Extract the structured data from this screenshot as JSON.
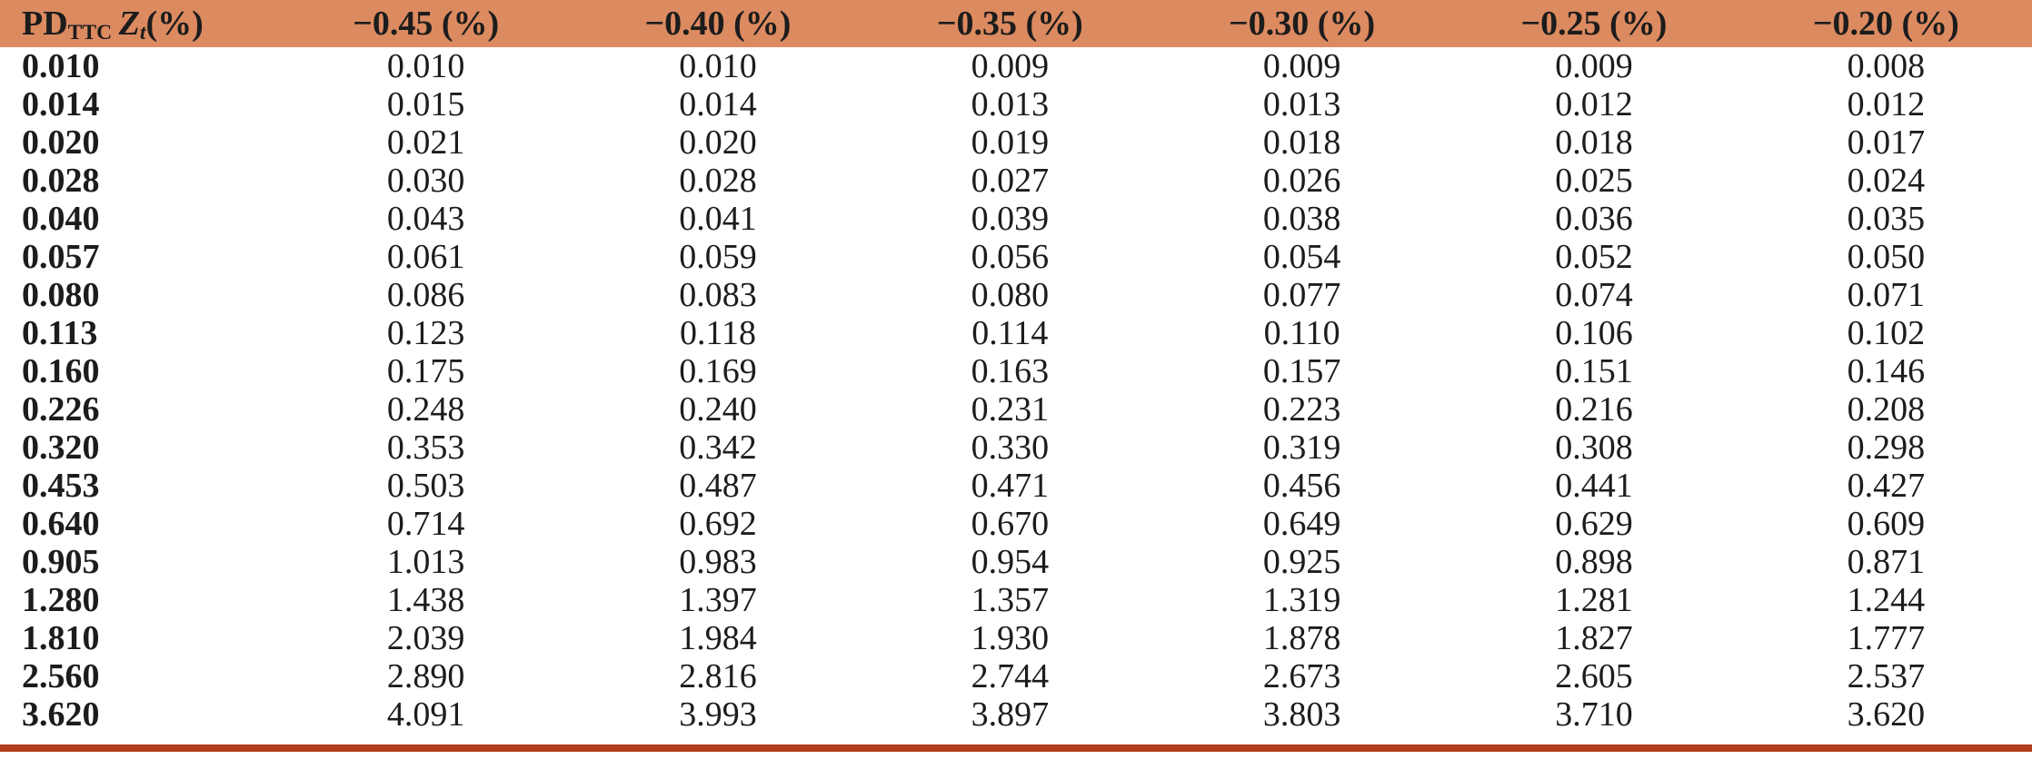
{
  "table": {
    "header_label": {
      "pd": "PD",
      "pd_sub": "TTC",
      "z": "Z",
      "z_sub": "t",
      "pct": "(%)"
    },
    "col_headers": [
      "−0.45 (%)",
      "−0.40 (%)",
      "−0.35 (%)",
      "−0.30 (%)",
      "−0.25 (%)",
      "−0.20 (%)"
    ],
    "rows": [
      {
        "label": "0.010",
        "values": [
          "0.010",
          "0.010",
          "0.009",
          "0.009",
          "0.009",
          "0.008"
        ]
      },
      {
        "label": "0.014",
        "values": [
          "0.015",
          "0.014",
          "0.013",
          "0.013",
          "0.012",
          "0.012"
        ]
      },
      {
        "label": "0.020",
        "values": [
          "0.021",
          "0.020",
          "0.019",
          "0.018",
          "0.018",
          "0.017"
        ]
      },
      {
        "label": "0.028",
        "values": [
          "0.030",
          "0.028",
          "0.027",
          "0.026",
          "0.025",
          "0.024"
        ]
      },
      {
        "label": "0.040",
        "values": [
          "0.043",
          "0.041",
          "0.039",
          "0.038",
          "0.036",
          "0.035"
        ]
      },
      {
        "label": "0.057",
        "values": [
          "0.061",
          "0.059",
          "0.056",
          "0.054",
          "0.052",
          "0.050"
        ]
      },
      {
        "label": "0.080",
        "values": [
          "0.086",
          "0.083",
          "0.080",
          "0.077",
          "0.074",
          "0.071"
        ]
      },
      {
        "label": "0.113",
        "values": [
          "0.123",
          "0.118",
          "0.114",
          "0.110",
          "0.106",
          "0.102"
        ]
      },
      {
        "label": "0.160",
        "values": [
          "0.175",
          "0.169",
          "0.163",
          "0.157",
          "0.151",
          "0.146"
        ]
      },
      {
        "label": "0.226",
        "values": [
          "0.248",
          "0.240",
          "0.231",
          "0.223",
          "0.216",
          "0.208"
        ]
      },
      {
        "label": "0.320",
        "values": [
          "0.353",
          "0.342",
          "0.330",
          "0.319",
          "0.308",
          "0.298"
        ]
      },
      {
        "label": "0.453",
        "values": [
          "0.503",
          "0.487",
          "0.471",
          "0.456",
          "0.441",
          "0.427"
        ]
      },
      {
        "label": "0.640",
        "values": [
          "0.714",
          "0.692",
          "0.670",
          "0.649",
          "0.629",
          "0.609"
        ]
      },
      {
        "label": "0.905",
        "values": [
          "1.013",
          "0.983",
          "0.954",
          "0.925",
          "0.898",
          "0.871"
        ]
      },
      {
        "label": "1.280",
        "values": [
          "1.438",
          "1.397",
          "1.357",
          "1.319",
          "1.281",
          "1.244"
        ]
      },
      {
        "label": "1.810",
        "values": [
          "2.039",
          "1.984",
          "1.930",
          "1.878",
          "1.827",
          "1.777"
        ]
      },
      {
        "label": "2.560",
        "values": [
          "2.890",
          "2.816",
          "2.744",
          "2.673",
          "2.605",
          "2.537"
        ]
      },
      {
        "label": "3.620",
        "values": [
          "4.091",
          "3.993",
          "3.897",
          "3.803",
          "3.710",
          "3.620"
        ]
      }
    ],
    "colors": {
      "header_background": "#DC8A60",
      "bottom_rule": "#B13E1D",
      "text": "#1c1c1c"
    }
  }
}
